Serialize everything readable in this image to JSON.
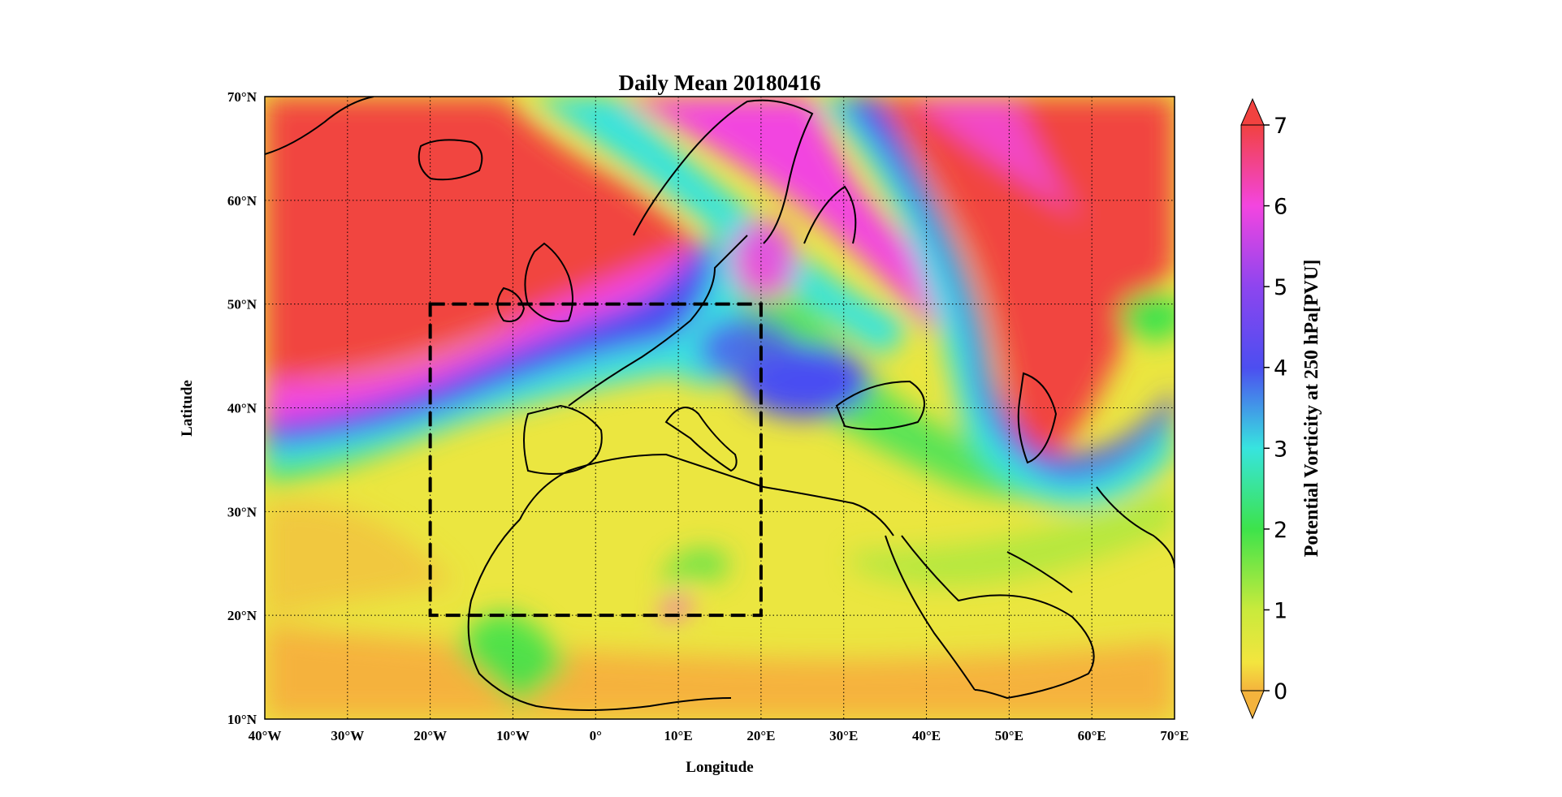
{
  "map": {
    "title": "Daily Mean 20180416",
    "xlabel": "Longitude",
    "ylabel": "Latitude",
    "lon_range": [
      -40,
      70
    ],
    "lat_range": [
      10,
      70
    ],
    "lon_ticks": [
      {
        "value": -40,
        "label": "40°W"
      },
      {
        "value": -30,
        "label": "30°W"
      },
      {
        "value": -20,
        "label": "20°W"
      },
      {
        "value": -10,
        "label": "10°W"
      },
      {
        "value": 0,
        "label": "0°"
      },
      {
        "value": 10,
        "label": "10°E"
      },
      {
        "value": 20,
        "label": "20°E"
      },
      {
        "value": 30,
        "label": "30°E"
      },
      {
        "value": 40,
        "label": "40°E"
      },
      {
        "value": 50,
        "label": "50°E"
      },
      {
        "value": 60,
        "label": "60°E"
      },
      {
        "value": 70,
        "label": "70°E"
      }
    ],
    "lat_ticks": [
      {
        "value": 10,
        "label": "10°N"
      },
      {
        "value": 20,
        "label": "20°N"
      },
      {
        "value": 30,
        "label": "30°N"
      },
      {
        "value": 40,
        "label": "40°N"
      },
      {
        "value": 50,
        "label": "50°N"
      },
      {
        "value": 60,
        "label": "60°N"
      },
      {
        "value": 70,
        "label": "70°N"
      }
    ],
    "grid": "dotted",
    "highlight_box": {
      "lon": [
        -20,
        20
      ],
      "lat": [
        20,
        50
      ],
      "style": "dashed"
    },
    "field": "potential vorticity at 250 hPa",
    "colors": {
      "high": "#f0453f",
      "magenta": "#f245e0",
      "blue": "#4c4ef0",
      "cyan": "#35e4e0",
      "green": "#3ee44a",
      "yellow": "#f2e640",
      "low": "#f5b13c"
    }
  },
  "colorbar": {
    "label": "Potential Vorticity at 250 hPa[PVU]",
    "range": [
      0,
      7
    ],
    "ticks": [
      "0",
      "1",
      "2",
      "3",
      "4",
      "5",
      "6",
      "7"
    ],
    "extend": "both",
    "stops": [
      {
        "v": 0,
        "color": "#f4b33d"
      },
      {
        "v": 0.35,
        "color": "#f3e53e"
      },
      {
        "v": 1,
        "color": "#c9ea3c"
      },
      {
        "v": 2,
        "color": "#3de34b"
      },
      {
        "v": 3,
        "color": "#37e4df"
      },
      {
        "v": 4,
        "color": "#4c4ef0"
      },
      {
        "v": 5,
        "color": "#8d45ef"
      },
      {
        "v": 6,
        "color": "#f345e0"
      },
      {
        "v": 7,
        "color": "#f14240"
      }
    ]
  }
}
